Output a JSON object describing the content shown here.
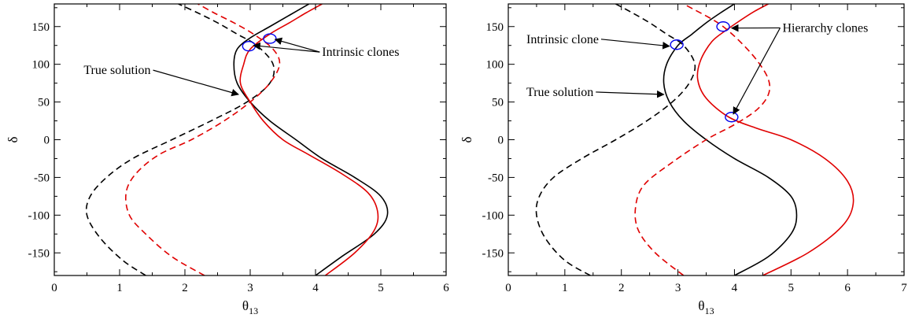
{
  "chart_data": [
    {
      "type": "line",
      "xlabel": "θ13",
      "ylabel": "δ",
      "xlim": [
        0,
        6
      ],
      "ylim": [
        -180,
        180
      ],
      "xticks": [
        0,
        1,
        2,
        3,
        4,
        5,
        6
      ],
      "yticks": [
        -150,
        -100,
        -50,
        0,
        50,
        100,
        150
      ],
      "series": [
        {
          "color": "#000000",
          "dash": false,
          "x": [
            4.0,
            4.4,
            4.9,
            5.1,
            5.0,
            4.6,
            4.1,
            3.7,
            3.3,
            3.0,
            2.8,
            2.75,
            2.8,
            3.0,
            3.3,
            3.6,
            3.9
          ],
          "y": [
            -180,
            -155,
            -125,
            -100,
            -75,
            -50,
            -25,
            0,
            25,
            50,
            75,
            100,
            120,
            135,
            150,
            165,
            180
          ]
        },
        {
          "color": "#000000",
          "dash": true,
          "x": [
            1.4,
            1.05,
            0.7,
            0.5,
            0.55,
            0.8,
            1.2,
            1.8,
            2.4,
            2.95,
            3.3,
            3.35,
            3.1,
            2.8,
            2.5,
            2.2,
            1.9
          ],
          "y": [
            -180,
            -160,
            -130,
            -100,
            -75,
            -50,
            -25,
            0,
            25,
            50,
            75,
            100,
            125,
            140,
            155,
            168,
            180
          ]
        },
        {
          "color": "#e00000",
          "dash": false,
          "x": [
            4.15,
            4.6,
            4.9,
            4.95,
            4.8,
            4.4,
            3.9,
            3.5,
            3.2,
            3.0,
            2.85,
            2.9,
            3.0,
            3.3,
            3.6,
            3.85,
            4.1
          ],
          "y": [
            -180,
            -150,
            -120,
            -95,
            -70,
            -45,
            -20,
            0,
            25,
            50,
            75,
            100,
            120,
            140,
            155,
            168,
            180
          ]
        },
        {
          "color": "#e00000",
          "dash": true,
          "x": [
            2.3,
            1.8,
            1.4,
            1.15,
            1.1,
            1.25,
            1.6,
            2.1,
            2.6,
            3.0,
            3.3,
            3.45,
            3.35,
            3.05,
            2.75,
            2.45,
            2.2
          ],
          "y": [
            -180,
            -155,
            -125,
            -100,
            -70,
            -45,
            -20,
            0,
            25,
            50,
            75,
            100,
            120,
            140,
            155,
            168,
            180
          ]
        }
      ],
      "markers": [
        {
          "x": 2.98,
          "y": 124
        },
        {
          "x": 3.3,
          "y": 134
        }
      ],
      "annotations": [
        {
          "text": "True solution",
          "x": 0.45,
          "y": 87,
          "arrow_to": [
            2.82,
            60
          ]
        },
        {
          "text": "Intrinsic clones",
          "x": 4.1,
          "y": 111,
          "arrow_to": [
            [
              3.05,
              125
            ],
            [
              3.38,
              133
            ]
          ]
        }
      ]
    },
    {
      "type": "line",
      "xlabel": "θ13",
      "ylabel": "δ",
      "xlim": [
        0,
        7
      ],
      "ylim": [
        -180,
        180
      ],
      "xticks": [
        0,
        1,
        2,
        3,
        4,
        5,
        6,
        7
      ],
      "yticks": [
        -150,
        -100,
        -50,
        0,
        50,
        100,
        150
      ],
      "series": [
        {
          "color": "#000000",
          "dash": false,
          "x": [
            4.0,
            4.6,
            5.0,
            5.1,
            5.0,
            4.6,
            4.0,
            3.5,
            3.1,
            2.85,
            2.75,
            2.8,
            3.0,
            3.25,
            3.5,
            3.75,
            4.0
          ],
          "y": [
            -180,
            -155,
            -125,
            -100,
            -75,
            -50,
            -25,
            0,
            25,
            50,
            75,
            100,
            125,
            140,
            155,
            168,
            180
          ]
        },
        {
          "color": "#000000",
          "dash": true,
          "x": [
            1.45,
            1.0,
            0.65,
            0.5,
            0.55,
            0.8,
            1.3,
            1.9,
            2.45,
            2.9,
            3.2,
            3.3,
            3.1,
            2.8,
            2.5,
            2.2,
            1.9
          ],
          "y": [
            -180,
            -160,
            -130,
            -100,
            -75,
            -50,
            -25,
            0,
            25,
            50,
            75,
            100,
            125,
            140,
            155,
            168,
            180
          ]
        },
        {
          "color": "#e00000",
          "dash": false,
          "x": [
            4.5,
            5.3,
            5.9,
            6.1,
            6.0,
            5.6,
            5.0,
            4.4,
            3.9,
            3.5,
            3.35,
            3.4,
            3.6,
            3.85,
            4.1,
            4.35,
            4.6
          ],
          "y": [
            -180,
            -150,
            -115,
            -85,
            -55,
            -25,
            0,
            15,
            30,
            55,
            80,
            105,
            130,
            145,
            158,
            170,
            180
          ]
        },
        {
          "color": "#e00000",
          "dash": true,
          "x": [
            3.1,
            2.6,
            2.3,
            2.25,
            2.4,
            2.9,
            3.5,
            4.0,
            4.4,
            4.6,
            4.6,
            4.4,
            4.1,
            3.8,
            3.55,
            3.3,
            3.1
          ],
          "y": [
            -180,
            -150,
            -120,
            -90,
            -60,
            -30,
            0,
            20,
            40,
            60,
            80,
            105,
            130,
            150,
            162,
            172,
            180
          ]
        }
      ],
      "markers": [
        {
          "x": 2.98,
          "y": 126
        },
        {
          "x": 3.8,
          "y": 150
        },
        {
          "x": 3.95,
          "y": 30
        }
      ],
      "annotations": [
        {
          "text": "Intrinsic clone",
          "x": 0.32,
          "y": 128,
          "arrow_to": [
            2.85,
            124
          ]
        },
        {
          "text": "True solution",
          "x": 0.32,
          "y": 58,
          "arrow_to": [
            2.75,
            60
          ]
        },
        {
          "text": "Hierarchy clones",
          "x": 4.85,
          "y": 143,
          "arrow_to": [
            [
              3.95,
              148
            ],
            [
              3.98,
              34
            ]
          ]
        }
      ]
    }
  ]
}
